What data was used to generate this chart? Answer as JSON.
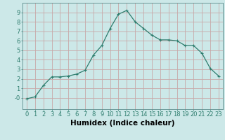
{
  "x": [
    0,
    1,
    2,
    3,
    4,
    5,
    6,
    7,
    8,
    9,
    10,
    11,
    12,
    13,
    14,
    15,
    16,
    17,
    18,
    19,
    20,
    21,
    22,
    23
  ],
  "y": [
    -0.1,
    0.1,
    1.3,
    2.2,
    2.2,
    2.3,
    2.5,
    2.9,
    4.5,
    5.5,
    7.3,
    8.8,
    9.2,
    8.0,
    7.3,
    6.6,
    6.1,
    6.1,
    6.0,
    5.5,
    5.5,
    4.7,
    3.1,
    2.3
  ],
  "line_color": "#2e7d6e",
  "marker": "+",
  "marker_size": 3.5,
  "marker_linewidth": 0.8,
  "line_width": 0.9,
  "bg_color": "#cce8e8",
  "grid_color": "#c8a8a8",
  "xlabel": "Humidex (Indice chaleur)",
  "xlabel_fontsize": 7.5,
  "tick_fontsize": 6.0,
  "xlim": [
    -0.5,
    23.5
  ],
  "ylim": [
    -1.2,
    10
  ],
  "yticks": [
    0,
    1,
    2,
    3,
    4,
    5,
    6,
    7,
    8,
    9
  ],
  "ytick_labels": [
    "-0",
    "1",
    "2",
    "3",
    "4",
    "5",
    "6",
    "7",
    "8",
    "9"
  ],
  "xticks": [
    0,
    1,
    2,
    3,
    4,
    5,
    6,
    7,
    8,
    9,
    10,
    11,
    12,
    13,
    14,
    15,
    16,
    17,
    18,
    19,
    20,
    21,
    22,
    23
  ],
  "figsize": [
    3.2,
    2.0
  ],
  "dpi": 100
}
